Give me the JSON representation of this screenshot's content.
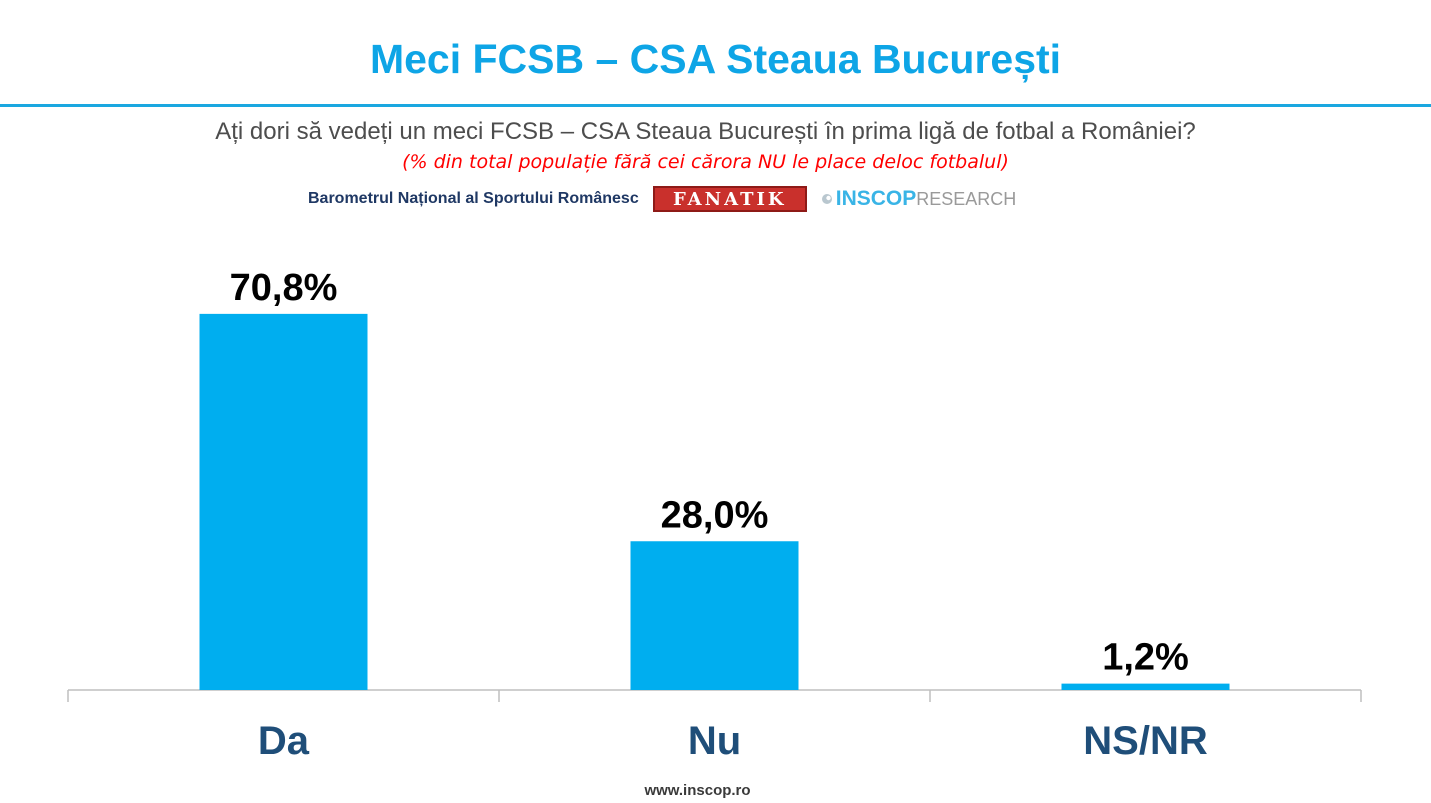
{
  "header": {
    "title": "Meci FCSB – CSA Steaua București",
    "question": "Ați dori să vedeți un meci FCSB – CSA Steaua București în prima ligă de fotbal a României?",
    "note": "(% din total populație fără cei cărora NU le place deloc fotbalul)"
  },
  "source": {
    "label": "Barometrul Național al Sportului Românesc",
    "fanatik_logo": "FANATIK",
    "inscop_name": "INSCOP",
    "inscop_suffix": "RESEARCH"
  },
  "footer": {
    "website": "www.inscop.ro"
  },
  "colors": {
    "bar": "#00aeef",
    "title": "#0ea5e6",
    "note": "#ff0000",
    "category_label": "#1f4e79"
  },
  "chart_data": {
    "type": "bar",
    "categories": [
      "Da",
      "Nu",
      "NS/NR"
    ],
    "values": [
      70.8,
      28.0,
      1.2
    ],
    "data_labels": [
      "70,8%",
      "28,0%",
      "1,2%"
    ],
    "ylim": [
      0,
      80
    ],
    "grid": false,
    "legend": "none"
  }
}
